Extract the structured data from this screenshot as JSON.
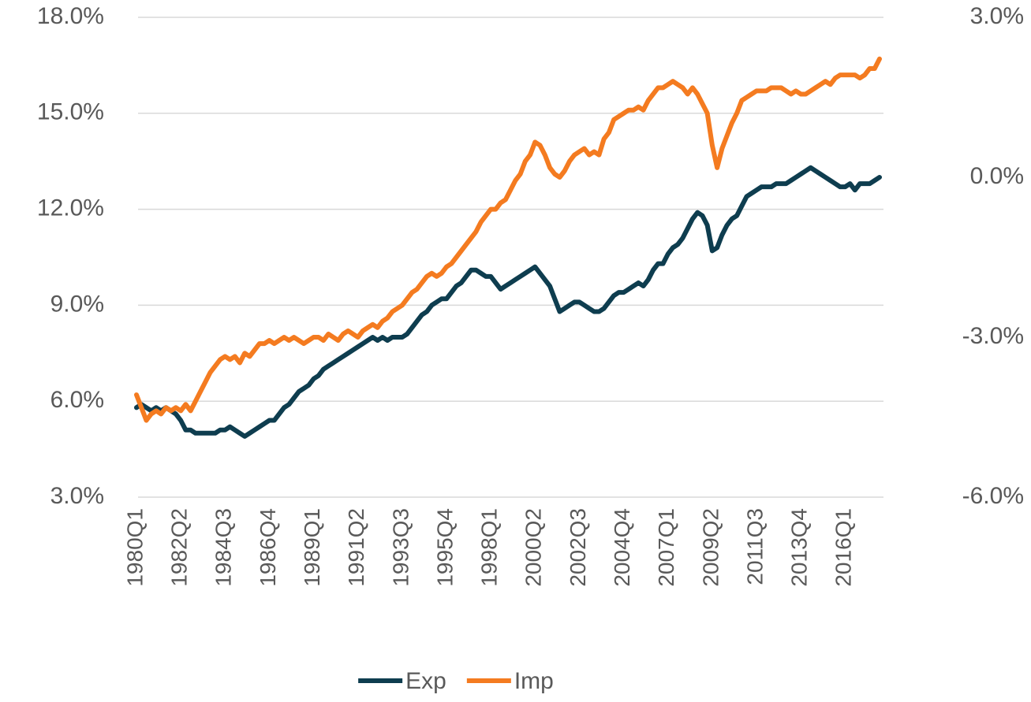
{
  "chart_data": {
    "type": "line",
    "categories": [
      "1980Q1",
      null,
      null,
      null,
      null,
      null,
      null,
      null,
      null,
      "1982Q2",
      null,
      null,
      null,
      null,
      null,
      null,
      null,
      null,
      "1984Q3",
      null,
      null,
      null,
      null,
      null,
      null,
      null,
      null,
      "1986Q4",
      null,
      null,
      null,
      null,
      null,
      null,
      null,
      null,
      "1989Q1",
      null,
      null,
      null,
      null,
      null,
      null,
      null,
      null,
      "1991Q2",
      null,
      null,
      null,
      null,
      null,
      null,
      null,
      null,
      "1993Q3",
      null,
      null,
      null,
      null,
      null,
      null,
      null,
      null,
      "1995Q4",
      null,
      null,
      null,
      null,
      null,
      null,
      null,
      null,
      "1998Q1",
      null,
      null,
      null,
      null,
      null,
      null,
      null,
      null,
      "2000Q2",
      null,
      null,
      null,
      null,
      null,
      null,
      null,
      null,
      "2002Q3",
      null,
      null,
      null,
      null,
      null,
      null,
      null,
      null,
      "2004Q4",
      null,
      null,
      null,
      null,
      null,
      null,
      null,
      null,
      "2007Q1",
      null,
      null,
      null,
      null,
      null,
      null,
      null,
      null,
      "2009Q2",
      null,
      null,
      null,
      null,
      null,
      null,
      null,
      null,
      "2011Q3",
      null,
      null,
      null,
      null,
      null,
      null,
      null,
      null,
      "2013Q4",
      null,
      null,
      null,
      null,
      null,
      null,
      null,
      null,
      "2016Q1",
      null,
      null,
      null,
      null,
      null,
      null,
      null
    ],
    "series": [
      {
        "name": "Exp",
        "color": "#0e3d4f",
        "values": [
          5.8,
          5.9,
          5.8,
          5.7,
          5.8,
          5.7,
          5.8,
          5.7,
          5.6,
          5.4,
          5.1,
          5.1,
          5.0,
          5.0,
          5.0,
          5.0,
          5.0,
          5.1,
          5.1,
          5.2,
          5.1,
          5.0,
          4.9,
          5.0,
          5.1,
          5.2,
          5.3,
          5.4,
          5.4,
          5.6,
          5.8,
          5.9,
          6.1,
          6.3,
          6.4,
          6.5,
          6.7,
          6.8,
          7.0,
          7.1,
          7.2,
          7.3,
          7.4,
          7.5,
          7.6,
          7.7,
          7.8,
          7.9,
          8.0,
          7.9,
          8.0,
          7.9,
          8.0,
          8.0,
          8.0,
          8.1,
          8.3,
          8.5,
          8.7,
          8.8,
          9.0,
          9.1,
          9.2,
          9.2,
          9.4,
          9.6,
          9.7,
          9.9,
          10.1,
          10.1,
          10.0,
          9.9,
          9.9,
          9.7,
          9.5,
          9.6,
          9.7,
          9.8,
          9.9,
          10.0,
          10.1,
          10.2,
          10.0,
          9.8,
          9.6,
          9.2,
          8.8,
          8.9,
          9.0,
          9.1,
          9.1,
          9.0,
          8.9,
          8.8,
          8.8,
          8.9,
          9.1,
          9.3,
          9.4,
          9.4,
          9.5,
          9.6,
          9.7,
          9.6,
          9.8,
          10.1,
          10.3,
          10.3,
          10.6,
          10.8,
          10.9,
          11.1,
          11.4,
          11.7,
          11.9,
          11.8,
          11.5,
          10.7,
          10.8,
          11.2,
          11.5,
          11.7,
          11.8,
          12.1,
          12.4,
          12.5,
          12.6,
          12.7,
          12.7,
          12.7,
          12.8,
          12.8,
          12.8,
          12.9,
          13.0,
          13.1,
          13.2,
          13.3,
          13.2,
          13.1,
          13.0,
          12.9,
          12.8,
          12.7,
          12.7,
          12.8,
          12.6,
          12.8,
          12.8,
          12.8,
          12.9,
          13.0
        ]
      },
      {
        "name": "Imp",
        "color": "#f47b20",
        "values": [
          6.2,
          5.8,
          5.4,
          5.6,
          5.7,
          5.6,
          5.8,
          5.7,
          5.8,
          5.7,
          5.9,
          5.7,
          6.0,
          6.3,
          6.6,
          6.9,
          7.1,
          7.3,
          7.4,
          7.3,
          7.4,
          7.2,
          7.5,
          7.4,
          7.6,
          7.8,
          7.8,
          7.9,
          7.8,
          7.9,
          8.0,
          7.9,
          8.0,
          7.9,
          7.8,
          7.9,
          8.0,
          8.0,
          7.9,
          8.1,
          8.0,
          7.9,
          8.1,
          8.2,
          8.1,
          8.0,
          8.2,
          8.3,
          8.4,
          8.3,
          8.5,
          8.6,
          8.8,
          8.9,
          9.0,
          9.2,
          9.4,
          9.5,
          9.7,
          9.9,
          10.0,
          9.9,
          10.0,
          10.2,
          10.3,
          10.5,
          10.7,
          10.9,
          11.1,
          11.3,
          11.6,
          11.8,
          12.0,
          12.0,
          12.2,
          12.3,
          12.6,
          12.9,
          13.1,
          13.5,
          13.7,
          14.1,
          14.0,
          13.7,
          13.3,
          13.1,
          13.0,
          13.2,
          13.5,
          13.7,
          13.8,
          13.9,
          13.7,
          13.8,
          13.7,
          14.2,
          14.4,
          14.8,
          14.9,
          15.0,
          15.1,
          15.1,
          15.2,
          15.1,
          15.4,
          15.6,
          15.8,
          15.8,
          15.9,
          16.0,
          15.9,
          15.8,
          15.6,
          15.8,
          15.6,
          15.3,
          15.0,
          14.0,
          13.3,
          13.9,
          14.3,
          14.7,
          15.0,
          15.4,
          15.5,
          15.6,
          15.7,
          15.7,
          15.7,
          15.8,
          15.8,
          15.8,
          15.7,
          15.6,
          15.7,
          15.6,
          15.6,
          15.7,
          15.8,
          15.9,
          16.0,
          15.9,
          16.1,
          16.2,
          16.2,
          16.2,
          16.2,
          16.1,
          16.2,
          16.4,
          16.4,
          16.7
        ]
      }
    ],
    "ylim": [
      3,
      18
    ],
    "yticks": [
      {
        "value": 3,
        "label": "3.0%"
      },
      {
        "value": 6,
        "label": "6.0%"
      },
      {
        "value": 9,
        "label": "9.0%"
      },
      {
        "value": 12,
        "label": "12.0%"
      },
      {
        "value": 15,
        "label": "15.0%"
      },
      {
        "value": 18,
        "label": "18.0%"
      }
    ],
    "y2lim": [
      -6,
      3
    ],
    "y2ticks": [
      {
        "value": -6,
        "label": "-6.0%"
      },
      {
        "value": -3,
        "label": "-3.0%"
      },
      {
        "value": 0,
        "label": "0.0%"
      },
      {
        "value": 3,
        "label": "3.0%"
      }
    ],
    "grid": true,
    "legend": "bottom"
  }
}
